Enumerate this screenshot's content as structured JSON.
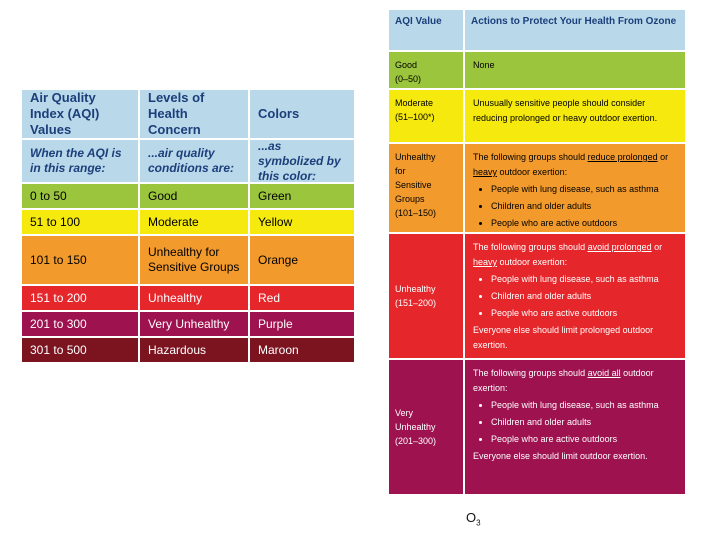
{
  "left_table": {
    "headers": [
      "Air Quality Index (AQI) Values",
      "Levels of Health Concern",
      "Colors"
    ],
    "subheaders": [
      "When the AQI is in this range:",
      "...air quality conditions are:",
      "...as symbolized by this color:"
    ],
    "rows": [
      {
        "range": "0 to 50",
        "level": "Good",
        "color": "Green",
        "bg": "#9bc53d",
        "dark": false
      },
      {
        "range": "51 to 100",
        "level": "Moderate",
        "color": "Yellow",
        "bg": "#f5e90d",
        "dark": false
      },
      {
        "range": "101 to 150",
        "level": "Unhealthy for Sensitive Groups",
        "color": "Orange",
        "bg": "#f39a2c",
        "dark": false
      },
      {
        "range": "151 to 200",
        "level": "Unhealthy",
        "color": "Red",
        "bg": "#e5262b",
        "dark": true
      },
      {
        "range": "201 to 300",
        "level": "Very Unhealthy",
        "color": "Purple",
        "bg": "#9e1250",
        "dark": true
      },
      {
        "range": "301 to 500",
        "level": "Hazardous",
        "color": "Maroon",
        "bg": "#7c1420",
        "dark": true
      }
    ]
  },
  "right_table": {
    "headers": [
      "AQI Value",
      "Actions to Protect Your Health From Ozone"
    ],
    "rows": {
      "good": {
        "label": "Good",
        "range": "(0–50)",
        "action": "None",
        "bg": "#9bc53d"
      },
      "moderate": {
        "label": "Moderate",
        "range": "(51–100*)",
        "action": "Unusually sensitive people should consider reducing prolonged or heavy outdoor exertion.",
        "bg": "#f5e90d"
      },
      "usg": {
        "label_lines": [
          "Unhealthy",
          "for",
          "Sensitive",
          "Groups"
        ],
        "range": "(101–150)",
        "intro_a": "The following groups should ",
        "intro_u1": "reduce prolonged",
        "intro_b": " or ",
        "intro_u2": "heavy",
        "intro_c": " outdoor exertion:",
        "bullets": [
          "People with lung disease, such as asthma",
          "Children and older adults",
          "People who are active outdoors"
        ],
        "bg": "#f39a2c"
      },
      "unhealthy": {
        "label": "Unhealthy",
        "range": "(151–200)",
        "intro_a": "The following groups should ",
        "intro_u1": "avoid prolonged",
        "intro_b": " or ",
        "intro_u2": "heavy",
        "intro_c": " outdoor exertion:",
        "bullets": [
          "People with lung disease, such as asthma",
          "Children and older adults",
          "People who are active outdoors"
        ],
        "footer": "Everyone else should limit prolonged outdoor exertion.",
        "bg": "#e5262b"
      },
      "very_unhealthy": {
        "label_lines": [
          "Very",
          "Unhealthy"
        ],
        "range": "(201–300)",
        "intro_a": "The following groups should ",
        "intro_u1": "avoid all",
        "intro_c": " outdoor exertion:",
        "bullets": [
          "People with lung disease, such as asthma",
          "Children and older adults",
          "People who are active outdoors"
        ],
        "footer": "Everyone else should limit outdoor exertion.",
        "bg": "#9e1250"
      }
    }
  },
  "caption": {
    "main": "O",
    "sub": "3"
  }
}
